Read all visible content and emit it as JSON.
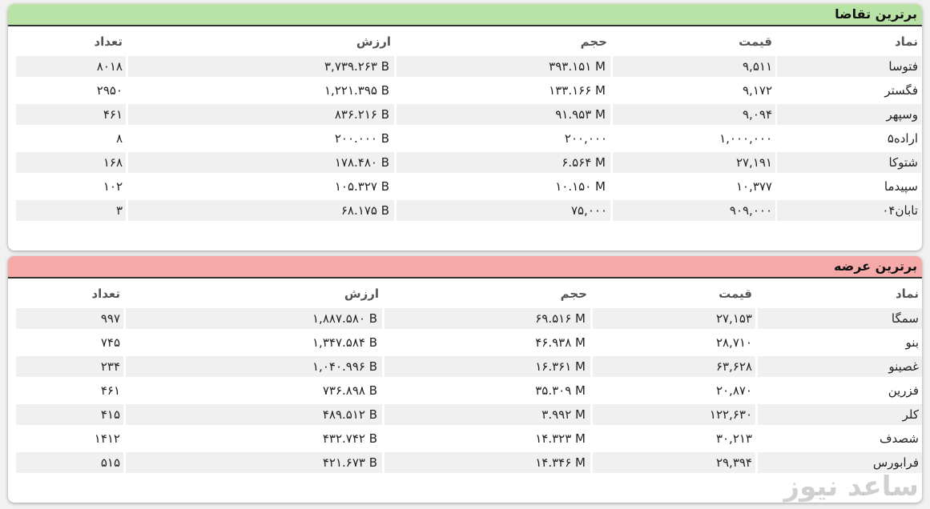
{
  "tables": [
    {
      "title": "برترین تقاضا",
      "headers": [
        "نماد",
        "قیمت",
        "حجم",
        "ارزش",
        "تعداد"
      ],
      "rows": [
        [
          "فتوسا",
          "۹,۵۱۱",
          "۳۹۳.۱۵۱ M",
          "۳,۷۳۹.۲۶۳ B",
          "۸۰۱۸"
        ],
        [
          "فگستر",
          "۹,۱۷۲",
          "۱۳۳.۱۶۶ M",
          "۱,۲۲۱.۳۹۵ B",
          "۲۹۵۰"
        ],
        [
          "وسپهر",
          "۹,۰۹۴",
          "۹۱.۹۵۳ M",
          "۸۳۶.۲۱۶ B",
          "۴۶۱"
        ],
        [
          "اراده۵",
          "۱,۰۰۰,۰۰۰",
          "۲۰۰,۰۰۰",
          "۲۰۰.۰۰۰ B",
          "۸"
        ],
        [
          "شتوکا",
          "۲۷,۱۹۱",
          "۶.۵۶۴ M",
          "۱۷۸.۴۸۰ B",
          "۱۶۸"
        ],
        [
          "سپیدما",
          "۱۰,۳۷۷",
          "۱۰.۱۵۰ M",
          "۱۰۵.۳۲۷ B",
          "۱۰۲"
        ],
        [
          "تابان۰۴",
          "۹۰۹,۰۰۰",
          "۷۵,۰۰۰",
          "۶۸.۱۷۵ B",
          "۳"
        ]
      ]
    },
    {
      "title": "برترین عرضه",
      "headers": [
        "نماد",
        "قیمت",
        "حجم",
        "ارزش",
        "تعداد"
      ],
      "rows": [
        [
          "سمگا",
          "۲۷,۱۵۳",
          "۶۹.۵۱۶ M",
          "۱,۸۸۷.۵۸۰ B",
          "۹۹۷"
        ],
        [
          "بنو",
          "۲۸,۷۱۰",
          "۴۶.۹۳۸ M",
          "۱,۳۴۷.۵۸۴ B",
          "۷۴۵"
        ],
        [
          "غصینو",
          "۶۳,۶۲۸",
          "۱۶.۳۶۱ M",
          "۱,۰۴۰.۹۹۶ B",
          "۲۳۴"
        ],
        [
          "فزرین",
          "۲۰,۸۷۰",
          "۳۵.۳۰۹ M",
          "۷۳۶.۸۹۸ B",
          "۴۶۱"
        ],
        [
          "کلر",
          "۱۲۲,۶۳۰",
          "۳.۹۹۲ M",
          "۴۸۹.۵۱۲ B",
          "۴۱۵"
        ],
        [
          "شصدف",
          "۳۰,۲۱۳",
          "۱۴.۳۲۳ M",
          "۴۳۲.۷۴۲ B",
          "۱۴۱۲"
        ],
        [
          "فرابورس",
          "۲۹,۳۹۴",
          "۱۴.۳۴۶ M",
          "۴۲۱.۶۷۳ B",
          "۵۱۵"
        ]
      ]
    }
  ],
  "watermark": "ساعد نیوز"
}
